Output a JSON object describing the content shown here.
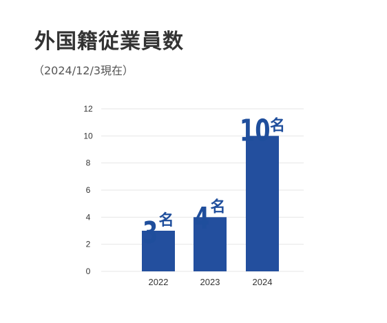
{
  "title": "外国籍従業員数",
  "subtitle": "（2024/12/3現在）",
  "colors": {
    "bar": "#234f9e",
    "label": "#1f4e9c",
    "grid": "#e6e6e6"
  },
  "chart_data": {
    "type": "bar",
    "categories": [
      "2022",
      "2023",
      "2024"
    ],
    "values": [
      3,
      4,
      10
    ],
    "value_unit": "名",
    "ylim": [
      0,
      12
    ],
    "yticks": [
      "0",
      "2",
      "4",
      "6",
      "8",
      "10",
      "12"
    ],
    "grid": true,
    "xlabel": "",
    "ylabel": ""
  }
}
